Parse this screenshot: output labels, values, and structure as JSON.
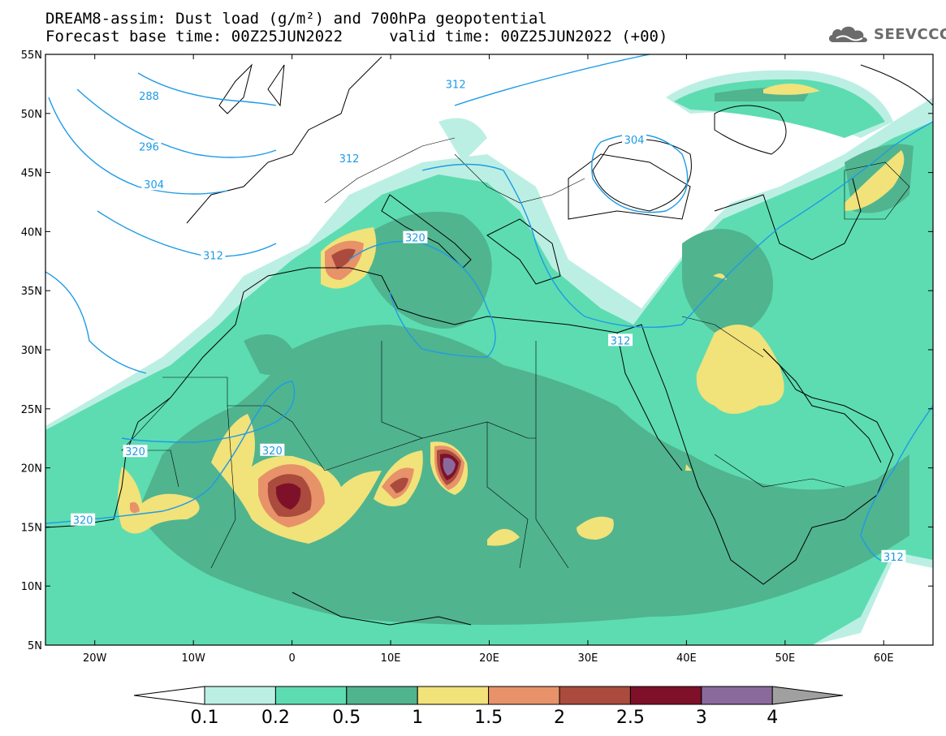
{
  "header": {
    "title_line1": "DREAM8-assim: Dust load (g/m²) and 700hPa geopotential",
    "title_line2": "Forecast base time: 00Z25JUN2022     valid time: 00Z25JUN2022 (+00)"
  },
  "logo": {
    "text": "SEEVCCC",
    "icon": "cloud-logo-icon",
    "color": "#6b6b6b"
  },
  "map": {
    "lon_range": [
      -25,
      65
    ],
    "lat_range": [
      5,
      55
    ],
    "lon_ticks": [
      {
        "lon": -20,
        "label": "20W"
      },
      {
        "lon": -10,
        "label": "10W"
      },
      {
        "lon": 0,
        "label": "0"
      },
      {
        "lon": 10,
        "label": "10E"
      },
      {
        "lon": 20,
        "label": "20E"
      },
      {
        "lon": 30,
        "label": "30E"
      },
      {
        "lon": 40,
        "label": "40E"
      },
      {
        "lon": 50,
        "label": "50E"
      },
      {
        "lon": 60,
        "label": "60E"
      }
    ],
    "lat_ticks": [
      {
        "lat": 55,
        "label": "55N"
      },
      {
        "lat": 50,
        "label": "50N"
      },
      {
        "lat": 45,
        "label": "45N"
      },
      {
        "lat": 40,
        "label": "40N"
      },
      {
        "lat": 35,
        "label": "35N"
      },
      {
        "lat": 30,
        "label": "30N"
      },
      {
        "lat": 25,
        "label": "25N"
      },
      {
        "lat": 20,
        "label": "20N"
      },
      {
        "lat": 15,
        "label": "15N"
      },
      {
        "lat": 10,
        "label": "10N"
      },
      {
        "lat": 5,
        "label": "5N"
      }
    ],
    "contour_labels": [
      {
        "text": "288",
        "lon": -14.5,
        "lat": 51.5
      },
      {
        "text": "296",
        "lon": -14.5,
        "lat": 47.2
      },
      {
        "text": "304",
        "lon": -14.0,
        "lat": 44.0
      },
      {
        "text": "312",
        "lon": -8.0,
        "lat": 38.0
      },
      {
        "text": "312",
        "lon": 16.6,
        "lat": 52.5
      },
      {
        "text": "304",
        "lon": 34.7,
        "lat": 47.8
      },
      {
        "text": "312",
        "lon": 5.8,
        "lat": 46.2
      },
      {
        "text": "320",
        "lon": 12.5,
        "lat": 39.5
      },
      {
        "text": "312",
        "lon": 33.3,
        "lat": 30.8
      },
      {
        "text": "320",
        "lon": -15.9,
        "lat": 21.4
      },
      {
        "text": "320",
        "lon": -2.0,
        "lat": 21.5
      },
      {
        "text": "320",
        "lon": -21.2,
        "lat": 15.6
      },
      {
        "text": "312",
        "lon": 61.0,
        "lat": 12.5
      }
    ],
    "dust_colors": {
      "c1": "#bcefe3",
      "c2": "#5ddcb1",
      "c3": "#50b48f",
      "c4": "#f1e27a",
      "c5": "#e79269",
      "c6": "#aa4b3e",
      "c7": "#7e1129",
      "c8": "#8a6a9c"
    },
    "contour_color": "#1e9be6"
  },
  "colorbar": {
    "colors": [
      "#bcefe3",
      "#5ddcb1",
      "#50b48f",
      "#f1e27a",
      "#e79269",
      "#aa4b3e",
      "#7e1129",
      "#8a6a9c"
    ],
    "under_color": "#ffffff",
    "over_color": "#a0a0a0",
    "labels": [
      "0.1",
      "0.2",
      "0.5",
      "1",
      "1.5",
      "2",
      "2.5",
      "3",
      "4"
    ]
  }
}
